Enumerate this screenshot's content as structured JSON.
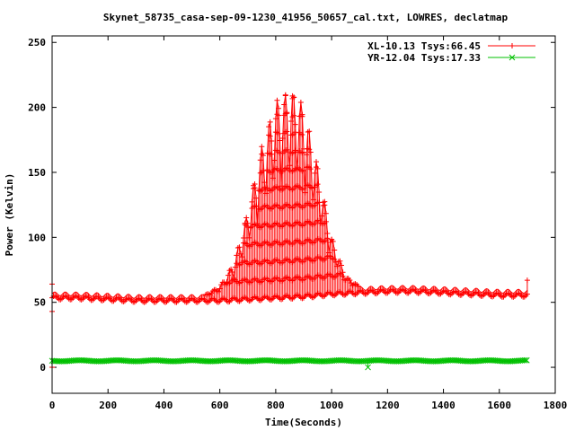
{
  "chart_data": {
    "type": "line",
    "title": "Skynet_58735_casa-sep-09-1230_41956_50657_cal.txt, LOWRES, declatmap",
    "xlabel": "Time(Seconds)",
    "ylabel": "Power (Kelvin)",
    "xlim": [
      0,
      1800
    ],
    "ylim": [
      -20,
      255
    ],
    "xticks": [
      0,
      200,
      400,
      600,
      800,
      1000,
      1200,
      1400,
      1600,
      1800
    ],
    "yticks": [
      0,
      50,
      100,
      150,
      200,
      250
    ],
    "legend_position": "top-right",
    "series": [
      {
        "name": "XL-10.13 Tsys:66.45",
        "color": "#ff0000",
        "marker": "plus",
        "baseline_x": [
          0,
          100,
          200,
          300,
          400,
          500,
          600,
          700,
          800,
          900,
          1000,
          1100,
          1200,
          1300,
          1400,
          1500,
          1600,
          1700
        ],
        "baseline_y": [
          55,
          55,
          54,
          53,
          53,
          53,
          53,
          54,
          55,
          56,
          58,
          59,
          60,
          60,
          59,
          58,
          57,
          57
        ],
        "source_peak_x": [
          550,
          600,
          650,
          700,
          750,
          800,
          850,
          875,
          900,
          950,
          1000,
          1050,
          1100
        ],
        "source_peak_y": [
          56,
          62,
          80,
          120,
          170,
          205,
          212,
          210,
          200,
          155,
          100,
          70,
          62
        ],
        "outliers": [
          [
            0,
            0
          ],
          [
            0,
            43
          ],
          [
            0,
            64
          ],
          [
            1700,
            67
          ]
        ]
      },
      {
        "name": "YR-12.04 Tsys:17.33",
        "color": "#00c000",
        "marker": "x",
        "baseline_x": [
          0,
          200,
          400,
          600,
          800,
          1000,
          1200,
          1400,
          1600,
          1700
        ],
        "baseline_y": [
          5,
          5,
          5,
          5,
          5,
          5,
          5,
          5,
          5,
          5
        ],
        "outliers": [
          [
            1130,
            0
          ]
        ]
      }
    ]
  }
}
